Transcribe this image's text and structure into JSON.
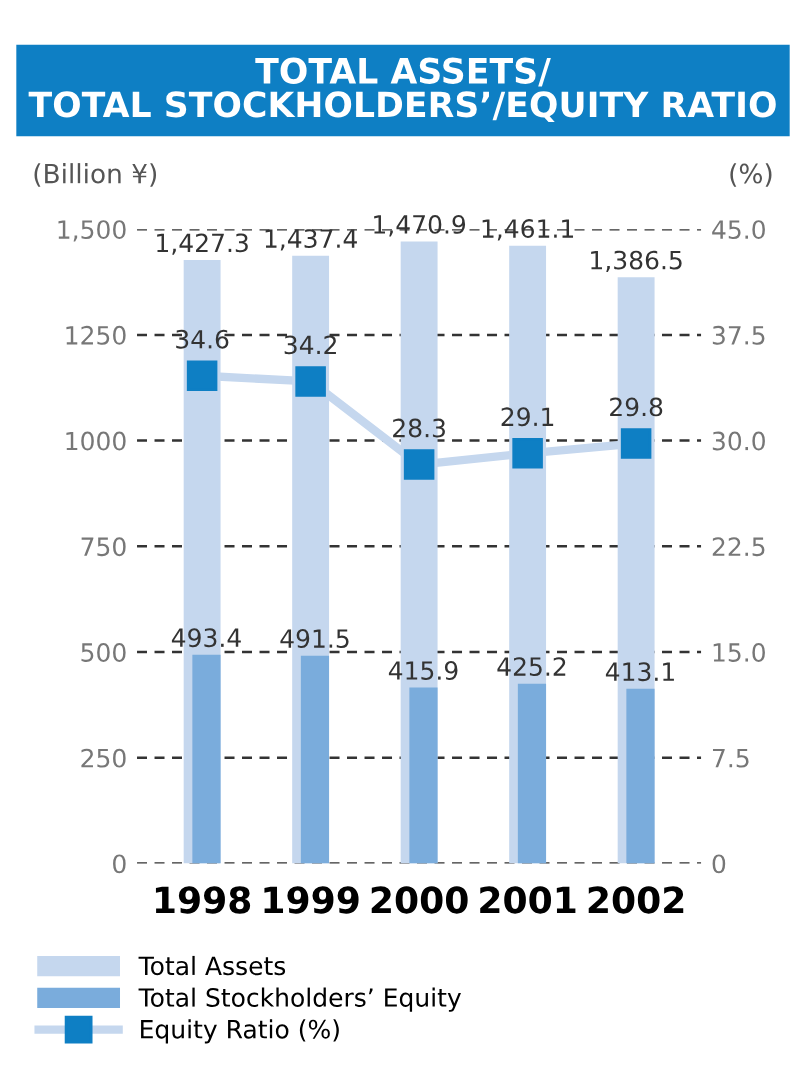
{
  "chart_data": {
    "type": "bar",
    "title": "TOTAL ASSETS/\nTOTAL STOCKHOLDERS’/EQUITY RATIO",
    "ylabel": "(Billion ¥)",
    "y2label": "(%)",
    "categories": [
      "1998",
      "1999",
      "2000",
      "2001",
      "2002"
    ],
    "series": [
      {
        "name": "Total Assets",
        "color": "#c5d7ee",
        "values": [
          1427.3,
          1437.4,
          1470.9,
          1461.1,
          1386.5
        ],
        "value_labels": [
          "1,427.3",
          "1,437.4",
          "1,470.9",
          "1,461.1",
          "1,386.5"
        ]
      },
      {
        "name": "Total Stockholders’ Equity",
        "color": "#7aacdc",
        "values": [
          493.4,
          491.5,
          415.9,
          425.2,
          413.1
        ]
      },
      {
        "name": "Equity Ratio (%)",
        "type": "line",
        "axis": "y2",
        "color": "#c5d7ee",
        "marker": "square",
        "values": [
          34.6,
          34.2,
          28.3,
          29.1,
          29.8
        ]
      }
    ],
    "ylim": [
      0,
      1500
    ],
    "yticks": [
      0,
      250,
      500,
      750,
      1000,
      1250,
      {
        "value": 1500,
        "label": "1,500"
      }
    ],
    "y2lim": [
      0,
      45
    ],
    "y2ticks": [
      0,
      7.5,
      {
        "value": 15,
        "label": "15.0"
      },
      22.5,
      {
        "value": 30,
        "label": "30.0"
      },
      37.5,
      {
        "value": 45,
        "label": "45.0"
      }
    ],
    "grid": "y",
    "legend": "bottom",
    "data_labels": true
  }
}
